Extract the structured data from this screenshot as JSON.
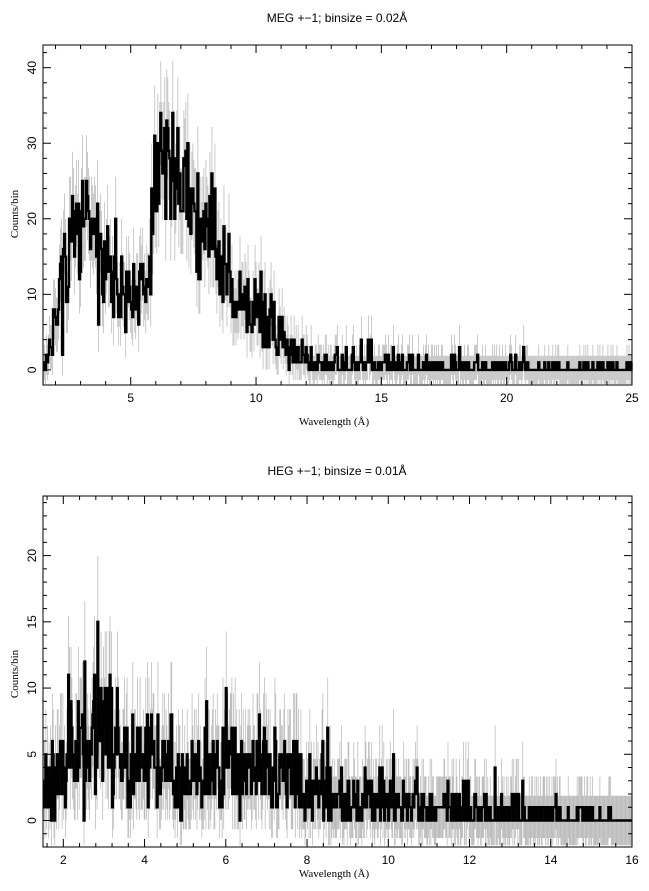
{
  "chart_data": [
    {
      "type": "line",
      "title": "MEG +−1; binsize = 0.02Å",
      "xlabel": "Wavelength (Å)",
      "ylabel": "Counts/bin",
      "xlim": [
        1.5,
        25
      ],
      "ylim": [
        -2,
        43
      ],
      "xticks": [
        5,
        10,
        15,
        20,
        25
      ],
      "xtick_labels": [
        "5",
        "10",
        "15",
        "20",
        "25"
      ],
      "yticks": [
        0,
        10,
        20,
        30,
        40
      ],
      "ytick_labels": [
        "0",
        "10",
        "20",
        "30",
        "40"
      ],
      "grid": false,
      "legend": "none",
      "x": [
        1.5,
        1.75,
        2.0,
        2.25,
        2.5,
        2.75,
        3.0,
        3.25,
        3.5,
        3.75,
        4.0,
        4.25,
        4.5,
        4.75,
        5.0,
        5.25,
        5.5,
        5.75,
        6.0,
        6.25,
        6.5,
        6.75,
        7.0,
        7.25,
        7.5,
        7.75,
        8.0,
        8.25,
        8.5,
        8.75,
        9.0,
        9.25,
        9.5,
        9.75,
        10.0,
        10.25,
        10.5,
        10.75,
        11.0,
        11.25,
        11.5,
        11.75,
        12.0,
        12.5,
        13.0,
        14.0,
        15.0,
        16.0,
        18.0,
        20.0,
        22.0,
        24.0,
        25.0
      ],
      "series": [
        {
          "values": [
            1,
            3,
            8,
            12,
            15,
            17,
            19,
            17,
            16,
            15,
            14,
            13,
            12,
            11,
            10,
            10,
            11,
            14,
            24,
            29,
            27,
            25,
            24,
            22,
            21,
            20,
            19,
            18,
            16,
            14,
            12,
            10,
            9,
            8,
            8,
            7,
            6,
            5,
            4,
            3,
            2.5,
            2,
            1.5,
            1.2,
            1,
            0.8,
            0.6,
            0.5,
            0.5,
            0.4,
            0.4,
            0.3,
            0.3
          ]
        }
      ]
    },
    {
      "type": "line",
      "title": "HEG +−1; binsize = 0.01Å",
      "xlabel": "Wavelength (Å)",
      "ylabel": "Counts/bin",
      "xlim": [
        1.5,
        16
      ],
      "ylim": [
        -2,
        24.5
      ],
      "xticks": [
        2,
        4,
        6,
        8,
        10,
        12,
        14,
        16
      ],
      "xtick_labels": [
        "2",
        "4",
        "6",
        "8",
        "10",
        "12",
        "14",
        "16"
      ],
      "yticks": [
        0,
        5,
        10,
        15,
        20
      ],
      "ytick_labels": [
        "0",
        "5",
        "10",
        "15",
        "20"
      ],
      "grid": false,
      "legend": "none",
      "x": [
        1.5,
        1.75,
        2.0,
        2.25,
        2.5,
        2.75,
        3.0,
        3.25,
        3.5,
        3.75,
        4.0,
        4.5,
        5.0,
        5.5,
        6.0,
        6.5,
        7.0,
        7.5,
        8.0,
        8.5,
        9.0,
        9.5,
        10.0,
        10.5,
        11.0,
        11.5,
        12.0,
        12.5,
        13.0,
        13.5,
        14.0,
        14.5,
        15.0,
        15.5,
        16.0
      ],
      "series": [
        {
          "values": [
            2,
            3,
            4,
            5,
            6,
            7.5,
            7,
            6,
            5.5,
            5,
            4.5,
            4,
            3.8,
            3.5,
            4,
            3.8,
            4,
            3.5,
            2.5,
            2,
            1.8,
            1.5,
            1.3,
            1.2,
            1,
            0.9,
            0.8,
            0.7,
            0.6,
            0.5,
            0.4,
            0.4,
            0.3,
            0.1,
            0
          ]
        }
      ]
    }
  ]
}
